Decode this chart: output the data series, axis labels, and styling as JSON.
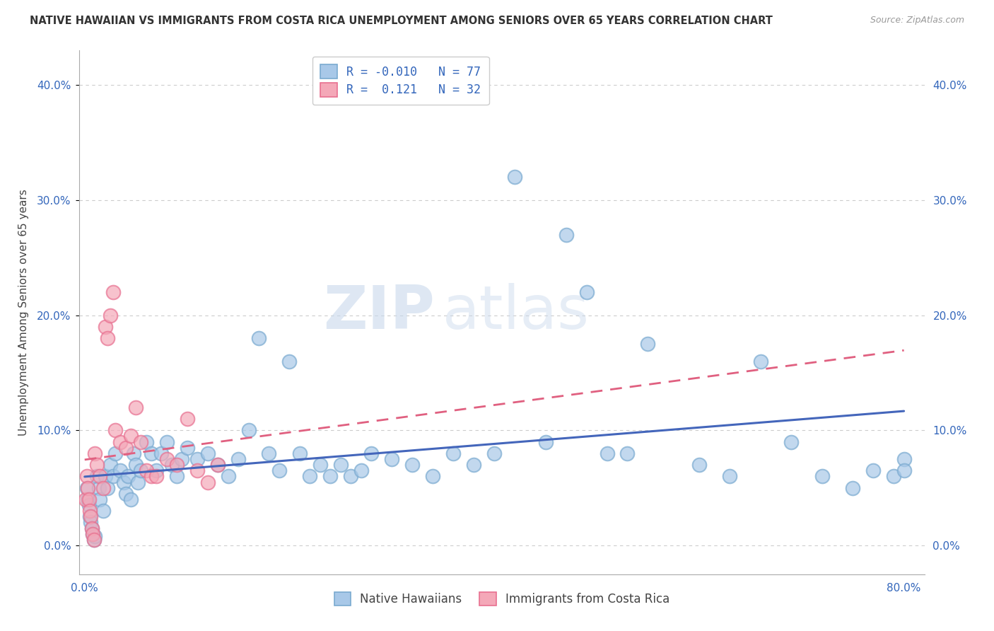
{
  "title": "NATIVE HAWAIIAN VS IMMIGRANTS FROM COSTA RICA UNEMPLOYMENT AMONG SENIORS OVER 65 YEARS CORRELATION CHART",
  "source": "Source: ZipAtlas.com",
  "ylabel": "Unemployment Among Seniors over 65 years",
  "xlim": [
    -0.005,
    0.82
  ],
  "ylim": [
    -0.025,
    0.43
  ],
  "xticks": [
    0.0,
    0.1,
    0.2,
    0.3,
    0.4,
    0.5,
    0.6,
    0.7,
    0.8
  ],
  "yticks": [
    0.0,
    0.1,
    0.2,
    0.3,
    0.4
  ],
  "xtick_labels": [
    "0.0%",
    "",
    "",
    "",
    "",
    "",
    "",
    "",
    "80.0%"
  ],
  "ytick_labels": [
    "0.0%",
    "10.0%",
    "20.0%",
    "30.0%",
    "40.0%"
  ],
  "blue_color": "#A8C8E8",
  "pink_color": "#F4A8B8",
  "blue_edge_color": "#7AAAD0",
  "pink_edge_color": "#E87090",
  "blue_line_color": "#4466BB",
  "pink_line_color": "#E06080",
  "legend_r_blue": "R = -0.010",
  "legend_n_blue": "N = 77",
  "legend_r_pink": "R =  0.121",
  "legend_n_pink": "N = 32",
  "watermark_zip": "ZIP",
  "watermark_atlas": "atlas",
  "native_hawaiian_x": [
    0.002,
    0.003,
    0.004,
    0.005,
    0.006,
    0.007,
    0.008,
    0.009,
    0.01,
    0.012,
    0.014,
    0.015,
    0.018,
    0.02,
    0.022,
    0.025,
    0.028,
    0.03,
    0.035,
    0.038,
    0.04,
    0.042,
    0.045,
    0.048,
    0.05,
    0.052,
    0.055,
    0.06,
    0.065,
    0.07,
    0.075,
    0.08,
    0.085,
    0.09,
    0.095,
    0.1,
    0.11,
    0.12,
    0.13,
    0.14,
    0.15,
    0.16,
    0.17,
    0.18,
    0.19,
    0.2,
    0.21,
    0.22,
    0.23,
    0.24,
    0.25,
    0.26,
    0.27,
    0.28,
    0.3,
    0.32,
    0.34,
    0.36,
    0.38,
    0.4,
    0.42,
    0.45,
    0.47,
    0.49,
    0.51,
    0.53,
    0.55,
    0.6,
    0.63,
    0.66,
    0.69,
    0.72,
    0.75,
    0.77,
    0.79,
    0.8,
    0.8
  ],
  "native_hawaiian_y": [
    0.05,
    0.04,
    0.035,
    0.025,
    0.02,
    0.015,
    0.01,
    0.005,
    0.008,
    0.06,
    0.05,
    0.04,
    0.03,
    0.06,
    0.05,
    0.07,
    0.06,
    0.08,
    0.065,
    0.055,
    0.045,
    0.06,
    0.04,
    0.08,
    0.07,
    0.055,
    0.065,
    0.09,
    0.08,
    0.065,
    0.08,
    0.09,
    0.07,
    0.06,
    0.075,
    0.085,
    0.075,
    0.08,
    0.07,
    0.06,
    0.075,
    0.1,
    0.18,
    0.08,
    0.065,
    0.16,
    0.08,
    0.06,
    0.07,
    0.06,
    0.07,
    0.06,
    0.065,
    0.08,
    0.075,
    0.07,
    0.06,
    0.08,
    0.07,
    0.08,
    0.32,
    0.09,
    0.27,
    0.22,
    0.08,
    0.08,
    0.175,
    0.07,
    0.06,
    0.16,
    0.09,
    0.06,
    0.05,
    0.065,
    0.06,
    0.075,
    0.065
  ],
  "costa_rica_x": [
    0.001,
    0.002,
    0.003,
    0.004,
    0.005,
    0.006,
    0.007,
    0.008,
    0.009,
    0.01,
    0.012,
    0.015,
    0.018,
    0.02,
    0.022,
    0.025,
    0.028,
    0.03,
    0.035,
    0.04,
    0.045,
    0.05,
    0.055,
    0.06,
    0.065,
    0.07,
    0.08,
    0.09,
    0.1,
    0.11,
    0.12,
    0.13
  ],
  "costa_rica_y": [
    0.04,
    0.06,
    0.05,
    0.04,
    0.03,
    0.025,
    0.015,
    0.01,
    0.005,
    0.08,
    0.07,
    0.06,
    0.05,
    0.19,
    0.18,
    0.2,
    0.22,
    0.1,
    0.09,
    0.085,
    0.095,
    0.12,
    0.09,
    0.065,
    0.06,
    0.06,
    0.075,
    0.07,
    0.11,
    0.065,
    0.055,
    0.07
  ]
}
